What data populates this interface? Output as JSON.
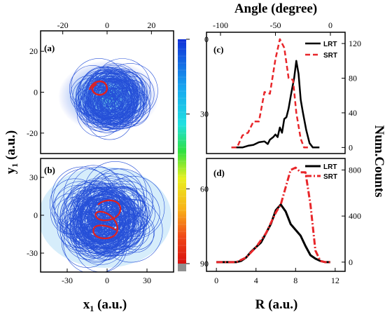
{
  "chart_data": [
    {
      "panel": "(a)",
      "type": "scatter",
      "description_of_content": "trajectory density plot",
      "xlabel": "x",
      "xlabel_sub": "1",
      "xlabel_unit": " (a.u.)",
      "ylabel": "y",
      "ylabel_sub": "1",
      "ylabel_unit": " (a.u.)",
      "xlim": [
        -30,
        30
      ],
      "ylim": [
        -30,
        30
      ],
      "xticks": [
        -20,
        0,
        20
      ],
      "yticks": [
        20,
        0,
        -20
      ],
      "xticks_top": [
        -20,
        0,
        20
      ]
    },
    {
      "panel": "(b)",
      "type": "scatter",
      "xlim": [
        -50,
        50
      ],
      "ylim": [
        -45,
        45
      ],
      "xticks": [
        -30,
        0,
        30
      ],
      "yticks": [
        30,
        0,
        -30
      ]
    },
    {
      "panel": "colorbar",
      "type": "heatmap",
      "ticks": [
        0,
        30,
        60,
        90
      ],
      "range": [
        0,
        90
      ]
    },
    {
      "panel": "(c)",
      "type": "line",
      "top_axis_label": "Angle (degree)",
      "top_xlim": [
        -100,
        0
      ],
      "top_xticks": [
        -100,
        -50,
        0
      ],
      "right_ylabel": "Num.Counts",
      "ylim": [
        0,
        130
      ],
      "yticks": [
        0,
        40,
        80,
        120
      ],
      "series": [
        {
          "name": "LRT",
          "style": "solid",
          "color": "#000000",
          "x": [
            -90,
            -80,
            -75,
            -70,
            -65,
            -60,
            -57,
            -55,
            -52,
            -50,
            -48,
            -46,
            -44,
            -42,
            -40,
            -38,
            -36,
            -35,
            -33,
            -31,
            -29,
            -27,
            -25,
            -22,
            -19,
            -16,
            -13,
            -10
          ],
          "y": [
            0,
            0,
            2,
            3,
            6,
            7,
            4,
            9,
            12,
            15,
            12,
            23,
            17,
            33,
            35,
            45,
            60,
            67,
            80,
            100,
            85,
            55,
            40,
            20,
            5,
            0,
            0,
            0
          ]
        },
        {
          "name": "SRT",
          "style": "dashed",
          "color": "#e8262a",
          "x": [
            -90,
            -85,
            -80,
            -75,
            -70,
            -65,
            -60,
            -55,
            -50,
            -46,
            -42,
            -38,
            -34,
            -31,
            -27,
            -24,
            -20
          ],
          "y": [
            0,
            0,
            14,
            17,
            30,
            30,
            64,
            62,
            102,
            125,
            115,
            80,
            78,
            40,
            10,
            0,
            0
          ]
        }
      ]
    },
    {
      "panel": "(d)",
      "type": "line",
      "xlabel": "R",
      "xlabel_unit": " (a.u.)",
      "xlim": [
        -1,
        13
      ],
      "xticks": [
        0,
        4,
        8,
        12
      ],
      "ylim": [
        -80,
        900
      ],
      "yticks": [
        0,
        400,
        800
      ],
      "series": [
        {
          "name": "LRT",
          "style": "solid",
          "color": "#000000",
          "x": [
            0,
            1,
            2,
            2.5,
            3,
            3.5,
            4,
            4.5,
            5,
            5.5,
            6,
            6.5,
            7,
            7.5,
            8,
            8.5,
            9,
            9.5,
            10,
            10.5,
            11,
            11.5
          ],
          "y": [
            0,
            0,
            0,
            10,
            40,
            90,
            130,
            170,
            250,
            330,
            450,
            500,
            440,
            330,
            280,
            230,
            140,
            60,
            30,
            10,
            0,
            0
          ]
        },
        {
          "name": "SRT",
          "style": "dashdot",
          "color": "#e8262a",
          "x": [
            0,
            1,
            2,
            3,
            4,
            5,
            6,
            6.5,
            7,
            7.5,
            8,
            8.5,
            9,
            9.5,
            10,
            10.5,
            11,
            11.5
          ],
          "y": [
            0,
            0,
            0,
            40,
            130,
            250,
            430,
            500,
            650,
            800,
            820,
            780,
            780,
            500,
            100,
            10,
            0,
            0
          ]
        }
      ]
    }
  ]
}
